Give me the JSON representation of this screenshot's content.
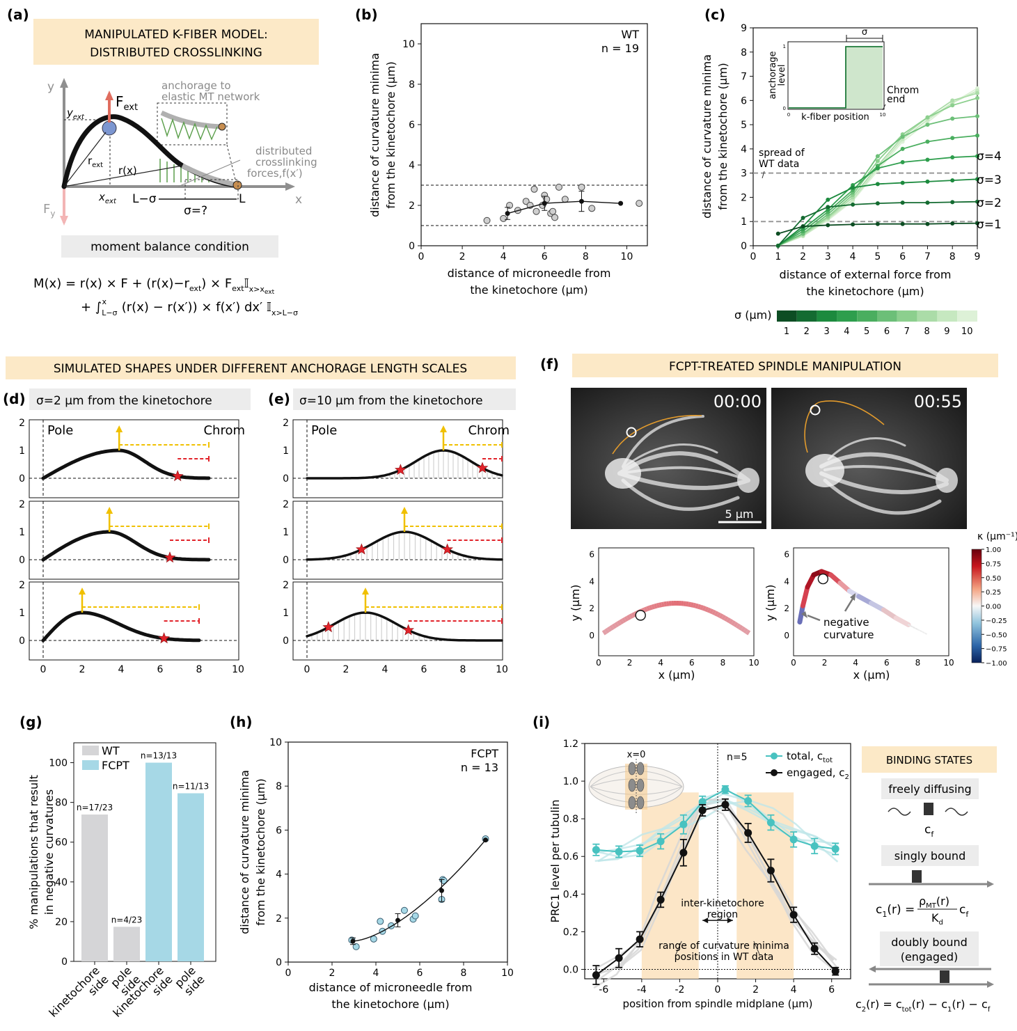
{
  "panels": {
    "a": {
      "label": "(a)",
      "banner_line1": "MANIPULATED K-FIBER MODEL:",
      "banner_line2": "DISTRIBUTED CROSSLINKING",
      "labels": {
        "y": "y",
        "x": "x",
        "f_ext": "F",
        "f_ext_sub": "ext",
        "f_y": "F",
        "f_y_sub": "y",
        "y_ext": "y",
        "y_ext_sub": "ext",
        "x_ext": "x",
        "x_ext_sub": "ext",
        "r_ext": "r",
        "r_ext_sub": "ext",
        "r_x": "r(x)",
        "l_minus_sigma": "L−σ",
        "l": "L",
        "sigma_q": "σ=?",
        "anchorage_1": "anchorage to",
        "anchorage_2": "elastic MT network",
        "crosslink_1": "distributed",
        "crosslink_2": "crosslinking",
        "crosslink_3": "forces,f(x′)"
      },
      "moment_box": "moment balance condition",
      "eq_line1": "M(x) = r(x) × F + (r(x)−r",
      "eq_line1_b": "ext",
      "eq_line1_c": ") × F",
      "eq_line1_d": "ext",
      "eq_line1_e": "𝕀",
      "eq_line1_f": "x>x",
      "eq_line1_g": "ext",
      "eq_line2": "+ ∫",
      "eq_line2_sub": "L−σ",
      "eq_line2_sup": "x",
      "eq_line2_b": " (r(x) − r(x′)) × f(x′) dx′ 𝕀",
      "eq_line2_c": "x>L−σ"
    },
    "b": {
      "label": "(b)",
      "annotation_1": "WT",
      "annotation_2": "n = 19",
      "xlabel_1": "distance of microneedle from",
      "xlabel_2": "the kinetochore (μm)",
      "ylabel_1": "distance of curvature minima",
      "ylabel_2": "from the kinetochore (μm)"
    },
    "c": {
      "label": "(c)",
      "xlabel_1": "distance of external force from",
      "xlabel_2": "the kinetochore (μm)",
      "ylabel_1": "distance of curvature minima",
      "ylabel_2": "from the kinetochore (μm)",
      "spread_1": "spread of",
      "spread_2": "WT data",
      "sigma_labels": [
        "σ=4",
        "σ=3",
        "σ=2",
        "σ=1"
      ],
      "inset": {
        "title": "σ",
        "ylabel_1": "anchorage",
        "ylabel_2": "level",
        "xlabel": "k-fiber position",
        "y0": "0",
        "y1": "1",
        "x0": "0",
        "x1": "10",
        "chrom_1": "Chrom",
        "chrom_2": "end"
      },
      "colorbar_label": "σ (μm)",
      "colorbar_ticks": [
        "1",
        "2",
        "3",
        "4",
        "5",
        "6",
        "7",
        "8",
        "9",
        "10"
      ],
      "colorbar_colors": [
        "#0d4d23",
        "#146b31",
        "#1c8a3e",
        "#2e9e4d",
        "#4aae5f",
        "#6cbf78",
        "#8ccf8e",
        "#abdca8",
        "#c6e8c0",
        "#ddf1d7"
      ]
    },
    "def_banner": "SIMULATED SHAPES UNDER DIFFERENT ANCHORAGE LENGTH SCALES",
    "d": {
      "label": "(d)",
      "subtitle": "σ=2 μm from the kinetochore",
      "pole": "Pole",
      "chrom": "Chrom"
    },
    "e": {
      "label": "(e)",
      "subtitle": "σ=10 μm from the kinetochore",
      "pole": "Pole",
      "chrom": "Chrom"
    },
    "f": {
      "label": "(f)",
      "banner": "FCPT-TREATED SPINDLE MANIPULATION",
      "time_1": "00:00",
      "time_2": "00:55",
      "scalebar": "5 μm",
      "xlabel": "x (μm)",
      "ylabel": "y (μm)",
      "negative_1": "negative",
      "negative_2": "curvature",
      "kappa_label": "κ (μm⁻¹)",
      "kappa_ticks": [
        "1.00",
        "0.75",
        "0.50",
        "0.25",
        "0.00",
        "−0.25",
        "−0.50",
        "−0.75",
        "−1.00"
      ]
    },
    "g": {
      "label": "(g)",
      "ylabel_1": "% manipulations that result",
      "ylabel_2": "in negative curvatures",
      "legend": [
        "WT",
        "FCPT"
      ],
      "bar_labels": [
        "n=17/23",
        "n=4/23",
        "n=13/13",
        "n=11/13"
      ],
      "categories": [
        "kinetochore side",
        "pole side",
        "kinetochore side",
        "pole side"
      ]
    },
    "h": {
      "label": "(h)",
      "annotation_1": "FCPT",
      "annotation_2": "n = 13",
      "xlabel_1": "distance of microneedle from",
      "xlabel_2": "the kinetochore (μm)",
      "ylabel_1": "distance of curvature minima",
      "ylabel_2": "from the kinetochore (μm)"
    },
    "i": {
      "label": "(i)",
      "ylabel": "PRC1 level per tubulin",
      "xlabel": "position from spindle midplane (μm)",
      "x0_label": "x=0",
      "n_label": "n=5",
      "legend_total": "total, c",
      "legend_total_sub": "tot",
      "legend_engaged": "engaged, c",
      "legend_engaged_sub": "2",
      "inter_1": "inter-kinetochore",
      "inter_2": "region",
      "range_1": "range of curvature minima",
      "range_2": "positions in WT data"
    },
    "binding": {
      "title": "BINDING STATES",
      "free": "freely diffusing",
      "cf": "c",
      "cf_sub": "f",
      "single": "singly bound",
      "c1": "c",
      "c1_sub": "1",
      "c1_eq": "(r) =",
      "rho": "ρ",
      "rho_sub": "MT",
      "rho_r": "(r)",
      "kd": "K",
      "kd_sub": "d",
      "c1_cf": "c",
      "c1_cf_sub": "f",
      "double_1": "doubly bound",
      "double_2": "(engaged)",
      "c2": "c",
      "c2_sub": "2",
      "c2_eq": "(r) = c",
      "c2_tot": "tot",
      "c2_rest": "(r) − c",
      "c2_1": "1",
      "c2_rest2": "(r) − c",
      "c2_f": "f"
    }
  },
  "chart_data": [
    {
      "panel": "b",
      "type": "scatter",
      "xlim": [
        0,
        11
      ],
      "ylim": [
        0,
        11
      ],
      "xticks": [
        0,
        2,
        4,
        6,
        8,
        10
      ],
      "yticks": [
        0,
        2,
        4,
        6,
        8,
        10
      ],
      "hlines": [
        1,
        3
      ],
      "points_x": [
        3.2,
        4.0,
        4.3,
        4.7,
        5.1,
        5.3,
        5.5,
        5.6,
        5.9,
        6.0,
        6.1,
        6.3,
        6.4,
        6.5,
        6.7,
        7.0,
        7.8,
        8.3,
        10.6
      ],
      "points_y": [
        1.25,
        1.35,
        2.0,
        1.75,
        2.2,
        2.0,
        2.8,
        1.7,
        2.0,
        2.5,
        2.3,
        1.6,
        1.7,
        1.4,
        2.9,
        2.3,
        2.9,
        1.85,
        2.1
      ],
      "mean_x": [
        4.2,
        6.0,
        7.8,
        9.7
      ],
      "mean_y": [
        1.6,
        2.1,
        2.2,
        2.1
      ],
      "mean_err": [
        0.3,
        0.35,
        0.5,
        0.0
      ]
    },
    {
      "panel": "c",
      "type": "line",
      "xlim": [
        0,
        9
      ],
      "ylim": [
        0,
        9
      ],
      "xticks": [
        0,
        1,
        2,
        3,
        4,
        5,
        6,
        7,
        8,
        9
      ],
      "yticks": [
        0,
        1,
        2,
        3,
        4,
        5,
        6,
        7,
        8,
        9
      ],
      "hlines": [
        1,
        3
      ],
      "x": [
        1,
        2,
        3,
        4,
        5,
        6,
        7,
        8,
        9
      ],
      "series": [
        {
          "name": "σ=1",
          "sigma": 1,
          "values": [
            0.5,
            0.8,
            0.85,
            0.88,
            0.9,
            0.9,
            0.9,
            0.92,
            0.93
          ]
        },
        {
          "name": "σ=2",
          "sigma": 2,
          "values": [
            0.0,
            1.15,
            1.6,
            1.7,
            1.75,
            1.78,
            1.78,
            1.8,
            1.82
          ]
        },
        {
          "name": "σ=3",
          "sigma": 3,
          "values": [
            0.0,
            0.8,
            1.9,
            2.4,
            2.55,
            2.6,
            2.65,
            2.7,
            2.75
          ]
        },
        {
          "name": "σ=4",
          "sigma": 4,
          "values": [
            0.0,
            0.7,
            1.5,
            2.5,
            3.2,
            3.45,
            3.55,
            3.65,
            3.7
          ]
        },
        {
          "sigma": 5,
          "values": [
            0.0,
            0.6,
            1.4,
            2.3,
            3.3,
            4.0,
            4.3,
            4.45,
            4.55
          ]
        },
        {
          "sigma": 6,
          "values": [
            0.0,
            0.5,
            1.3,
            2.2,
            3.7,
            4.5,
            5.0,
            5.25,
            5.35
          ]
        },
        {
          "sigma": 7,
          "values": [
            0.0,
            0.5,
            1.2,
            2.1,
            3.5,
            4.6,
            5.3,
            5.8,
            6.1
          ]
        },
        {
          "sigma": 8,
          "values": [
            0.0,
            0.45,
            1.15,
            2.0,
            3.3,
            4.5,
            5.3,
            6.0,
            6.3
          ]
        },
        {
          "sigma": 9,
          "values": [
            0.0,
            0.4,
            1.1,
            1.9,
            3.2,
            4.4,
            5.2,
            5.9,
            6.4
          ]
        },
        {
          "sigma": 10,
          "values": [
            0.0,
            0.4,
            1.05,
            1.85,
            3.1,
            4.3,
            5.1,
            5.9,
            6.5
          ]
        }
      ]
    },
    {
      "panel": "g",
      "type": "bar",
      "ylim": [
        0,
        110
      ],
      "yticks": [
        0,
        20,
        40,
        60,
        80,
        100
      ],
      "categories": [
        "kinetochore side",
        "pole side",
        "kinetochore side",
        "pole side"
      ],
      "values": [
        73.9,
        17.4,
        100,
        84.6
      ],
      "groups": [
        "WT",
        "WT",
        "FCPT",
        "FCPT"
      ]
    },
    {
      "panel": "h",
      "type": "scatter",
      "xlim": [
        0,
        10
      ],
      "ylim": [
        0,
        10
      ],
      "xticks": [
        0,
        2,
        4,
        6,
        8,
        10
      ],
      "yticks": [
        0,
        2,
        4,
        6,
        8,
        10
      ],
      "points_x": [
        2.9,
        3.1,
        3.9,
        4.2,
        4.3,
        4.7,
        5.3,
        5.7,
        5.8,
        7.0,
        7.05,
        7.1,
        9.0
      ],
      "points_y": [
        1.0,
        0.7,
        1.05,
        1.85,
        1.4,
        1.65,
        2.35,
        1.95,
        2.1,
        2.85,
        3.75,
        3.7,
        5.6
      ],
      "mean_x": [
        2.95,
        5.0,
        7.0,
        9.0
      ],
      "mean_y": [
        0.95,
        1.9,
        3.25,
        5.55
      ],
      "mean_err": [
        0.15,
        0.3,
        0.5,
        0.0
      ]
    },
    {
      "panel": "i",
      "type": "line",
      "xlim": [
        -7,
        7
      ],
      "ylim": [
        -0.05,
        1.2
      ],
      "xticks": [
        -6,
        -4,
        -2,
        0,
        2,
        4,
        6
      ],
      "yticks": [
        0.0,
        0.2,
        0.4,
        0.6,
        0.8,
        1.0,
        1.2
      ],
      "x": [
        -6.4,
        -5.2,
        -4.1,
        -3.0,
        -1.8,
        -0.8,
        0.4,
        1.6,
        2.8,
        4.0,
        5.1,
        6.2
      ],
      "series": [
        {
          "name": "total, ctot",
          "values": [
            0.635,
            0.625,
            0.63,
            0.68,
            0.77,
            0.89,
            0.955,
            0.895,
            0.78,
            0.69,
            0.655,
            0.64
          ],
          "err": [
            0.03,
            0.03,
            0.03,
            0.04,
            0.05,
            0.03,
            0.02,
            0.03,
            0.04,
            0.04,
            0.04,
            0.03
          ]
        },
        {
          "name": "engaged, c2",
          "values": [
            -0.03,
            0.06,
            0.16,
            0.37,
            0.62,
            0.845,
            0.875,
            0.725,
            0.525,
            0.29,
            0.11,
            -0.01
          ],
          "err": [
            0.05,
            0.05,
            0.04,
            0.04,
            0.07,
            0.03,
            0.03,
            0.05,
            0.06,
            0.04,
            0.03,
            0.02
          ]
        }
      ]
    }
  ]
}
